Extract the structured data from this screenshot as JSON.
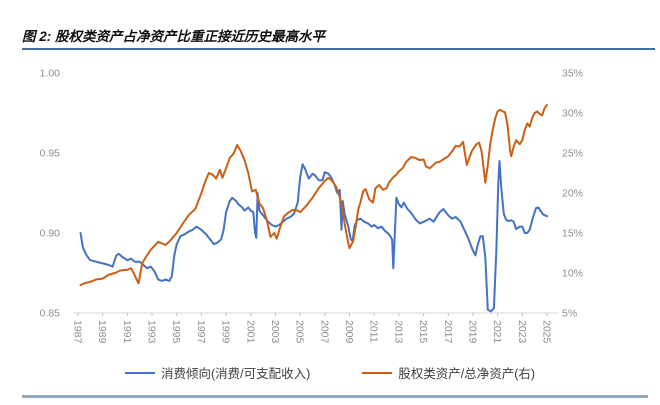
{
  "figure": {
    "title": "图 2: 股权类资产占净资产比重正接近历史最高水平"
  },
  "legend": {
    "series1": "消费倾向(消费/可支配收入)",
    "series2": "股权类资产/总净资产(右)"
  },
  "chart_data": {
    "type": "line",
    "title": "图 2: 股权类资产占净资产比重正接近历史最高水平",
    "grid": false,
    "legend_position": "bottom",
    "colors": {
      "series1_blue": "#4472C4",
      "series2_orange": "#CB6015",
      "axis_text": "#8E8E8E",
      "axis_line": "#D9D9D9",
      "tick_mark": "#BFBFBF",
      "title_rule": "#41719C",
      "bottom_rule": "#90A7BD"
    },
    "x_axis": {
      "min": 1987,
      "max": 2025,
      "tick_years": [
        1987,
        1989,
        1991,
        1993,
        1995,
        1997,
        1999,
        2001,
        2003,
        2005,
        2007,
        2009,
        2011,
        2013,
        2015,
        2017,
        2019,
        2021,
        2023,
        2025
      ]
    },
    "left_axis": {
      "min": 0.85,
      "max": 1.0,
      "ticks": [
        1.0,
        0.95,
        0.9,
        0.85
      ],
      "tick_labels": [
        "1.00",
        "0.95",
        "0.90",
        "0.85"
      ]
    },
    "right_axis": {
      "min": 5,
      "max": 35,
      "ticks": [
        35,
        30,
        25,
        20,
        15,
        10,
        5
      ],
      "tick_labels": [
        "35%",
        "30%",
        "25%",
        "20%",
        "15%",
        "10%",
        "5%"
      ]
    },
    "series": [
      {
        "name": "消费倾向(消费/可支配收入)",
        "axis": "left",
        "color": "#4472C4",
        "points": [
          [
            1987.2,
            0.9
          ],
          [
            1987.4,
            0.891
          ],
          [
            1987.7,
            0.886
          ],
          [
            1988.0,
            0.883
          ],
          [
            1988.5,
            0.882
          ],
          [
            1989.0,
            0.881
          ],
          [
            1989.5,
            0.88
          ],
          [
            1989.8,
            0.879
          ],
          [
            1990.1,
            0.886
          ],
          [
            1990.3,
            0.887
          ],
          [
            1990.6,
            0.885
          ],
          [
            1991.0,
            0.883
          ],
          [
            1991.3,
            0.884
          ],
          [
            1991.6,
            0.882
          ],
          [
            1992.0,
            0.882
          ],
          [
            1992.3,
            0.88
          ],
          [
            1992.6,
            0.878
          ],
          [
            1992.9,
            0.879
          ],
          [
            1993.2,
            0.876
          ],
          [
            1993.5,
            0.871
          ],
          [
            1993.8,
            0.87
          ],
          [
            1994.1,
            0.871
          ],
          [
            1994.4,
            0.87
          ],
          [
            1994.6,
            0.873
          ],
          [
            1994.8,
            0.886
          ],
          [
            1995.0,
            0.893
          ],
          [
            1995.3,
            0.898
          ],
          [
            1995.6,
            0.899
          ],
          [
            1996.0,
            0.901
          ],
          [
            1996.3,
            0.902
          ],
          [
            1996.6,
            0.904
          ],
          [
            1997.0,
            0.902
          ],
          [
            1997.4,
            0.899
          ],
          [
            1997.7,
            0.896
          ],
          [
            1998.0,
            0.893
          ],
          [
            1998.3,
            0.894
          ],
          [
            1998.6,
            0.896
          ],
          [
            1998.8,
            0.902
          ],
          [
            1999.0,
            0.913
          ],
          [
            1999.3,
            0.92
          ],
          [
            1999.5,
            0.922
          ],
          [
            1999.8,
            0.92
          ],
          [
            2000.0,
            0.918
          ],
          [
            2000.3,
            0.916
          ],
          [
            2000.5,
            0.914
          ],
          [
            2000.8,
            0.916
          ],
          [
            2001.0,
            0.914
          ],
          [
            2001.2,
            0.913
          ],
          [
            2001.35,
            0.9
          ],
          [
            2001.45,
            0.897
          ],
          [
            2001.55,
            0.925
          ],
          [
            2001.7,
            0.914
          ],
          [
            2001.9,
            0.912
          ],
          [
            2002.1,
            0.91
          ],
          [
            2002.4,
            0.907
          ],
          [
            2002.7,
            0.905
          ],
          [
            2003.0,
            0.904
          ],
          [
            2003.3,
            0.905
          ],
          [
            2003.6,
            0.907
          ],
          [
            2003.9,
            0.909
          ],
          [
            2004.2,
            0.91
          ],
          [
            2004.5,
            0.912
          ],
          [
            2004.8,
            0.919
          ],
          [
            2005.0,
            0.935
          ],
          [
            2005.2,
            0.943
          ],
          [
            2005.4,
            0.94
          ],
          [
            2005.7,
            0.934
          ],
          [
            2006.0,
            0.937
          ],
          [
            2006.2,
            0.936
          ],
          [
            2006.5,
            0.933
          ],
          [
            2006.8,
            0.933
          ],
          [
            2007.0,
            0.938
          ],
          [
            2007.3,
            0.937
          ],
          [
            2007.5,
            0.935
          ],
          [
            2007.8,
            0.93
          ],
          [
            2008.0,
            0.925
          ],
          [
            2008.2,
            0.927
          ],
          [
            2008.35,
            0.902
          ],
          [
            2008.45,
            0.92
          ],
          [
            2008.6,
            0.912
          ],
          [
            2008.9,
            0.904
          ],
          [
            2009.1,
            0.896
          ],
          [
            2009.25,
            0.895
          ],
          [
            2009.4,
            0.904
          ],
          [
            2009.6,
            0.908
          ],
          [
            2009.9,
            0.909
          ],
          [
            2010.2,
            0.907
          ],
          [
            2010.5,
            0.906
          ],
          [
            2010.8,
            0.904
          ],
          [
            2011.0,
            0.905
          ],
          [
            2011.3,
            0.903
          ],
          [
            2011.6,
            0.904
          ],
          [
            2011.9,
            0.901
          ],
          [
            2012.1,
            0.9
          ],
          [
            2012.3,
            0.898
          ],
          [
            2012.45,
            0.896
          ],
          [
            2012.55,
            0.878
          ],
          [
            2012.65,
            0.896
          ],
          [
            2012.8,
            0.922
          ],
          [
            2013.0,
            0.918
          ],
          [
            2013.2,
            0.916
          ],
          [
            2013.4,
            0.919
          ],
          [
            2013.7,
            0.915
          ],
          [
            2014.0,
            0.9125
          ],
          [
            2014.4,
            0.908
          ],
          [
            2014.7,
            0.906
          ],
          [
            2015.0,
            0.907
          ],
          [
            2015.5,
            0.909
          ],
          [
            2015.8,
            0.907
          ],
          [
            2016.3,
            0.913
          ],
          [
            2016.6,
            0.915
          ],
          [
            2017.0,
            0.911
          ],
          [
            2017.3,
            0.909
          ],
          [
            2017.6,
            0.91
          ],
          [
            2018.0,
            0.907
          ],
          [
            2018.3,
            0.902
          ],
          [
            2018.6,
            0.897
          ],
          [
            2019.0,
            0.889
          ],
          [
            2019.2,
            0.886
          ],
          [
            2019.4,
            0.893
          ],
          [
            2019.6,
            0.898
          ],
          [
            2019.8,
            0.898
          ],
          [
            2020.0,
            0.885
          ],
          [
            2020.2,
            0.852
          ],
          [
            2020.45,
            0.851
          ],
          [
            2020.7,
            0.853
          ],
          [
            2020.9,
            0.89
          ],
          [
            2021.05,
            0.93
          ],
          [
            2021.15,
            0.945
          ],
          [
            2021.3,
            0.928
          ],
          [
            2021.5,
            0.912
          ],
          [
            2021.7,
            0.908
          ],
          [
            2021.9,
            0.9075
          ],
          [
            2022.1,
            0.908
          ],
          [
            2022.3,
            0.907
          ],
          [
            2022.5,
            0.9025
          ],
          [
            2022.8,
            0.904
          ],
          [
            2023.0,
            0.904
          ],
          [
            2023.2,
            0.9
          ],
          [
            2023.4,
            0.9
          ],
          [
            2023.6,
            0.902
          ],
          [
            2023.8,
            0.908
          ],
          [
            2024.1,
            0.9155
          ],
          [
            2024.3,
            0.916
          ],
          [
            2024.5,
            0.9135
          ],
          [
            2024.7,
            0.9115
          ],
          [
            2025.0,
            0.9105
          ]
        ]
      },
      {
        "name": "股权类资产/总净资产(右)",
        "axis": "right",
        "color": "#CB6015",
        "points": [
          [
            1987.2,
            8.5
          ],
          [
            1987.5,
            8.7
          ],
          [
            1988.0,
            8.9
          ],
          [
            1988.5,
            9.2
          ],
          [
            1989.0,
            9.3
          ],
          [
            1989.5,
            9.8
          ],
          [
            1990.0,
            10.0
          ],
          [
            1990.4,
            10.3
          ],
          [
            1991.0,
            10.4
          ],
          [
            1991.3,
            10.6
          ],
          [
            1991.6,
            9.7
          ],
          [
            1991.9,
            8.7
          ],
          [
            1992.2,
            11.2
          ],
          [
            1992.5,
            12.0
          ],
          [
            1992.9,
            12.9
          ],
          [
            1993.5,
            13.9
          ],
          [
            1994.1,
            13.5
          ],
          [
            1994.5,
            14.1
          ],
          [
            1995.0,
            15.0
          ],
          [
            1995.5,
            16.2
          ],
          [
            1996.0,
            17.3
          ],
          [
            1996.5,
            18.0
          ],
          [
            1997.0,
            20.0
          ],
          [
            1997.3,
            21.4
          ],
          [
            1997.6,
            22.5
          ],
          [
            1997.9,
            22.3
          ],
          [
            1998.2,
            21.8
          ],
          [
            1998.5,
            22.9
          ],
          [
            1998.7,
            21.9
          ],
          [
            1999.0,
            23.1
          ],
          [
            1999.3,
            24.4
          ],
          [
            1999.6,
            24.9
          ],
          [
            1999.9,
            26.0
          ],
          [
            2000.2,
            25.2
          ],
          [
            2000.5,
            24.1
          ],
          [
            2000.8,
            22.5
          ],
          [
            2001.1,
            20.2
          ],
          [
            2001.4,
            20.4
          ],
          [
            2001.7,
            18.7
          ],
          [
            2002.0,
            18.1
          ],
          [
            2002.3,
            16.6
          ],
          [
            2002.6,
            14.5
          ],
          [
            2002.9,
            15.0
          ],
          [
            2003.1,
            14.3
          ],
          [
            2003.4,
            15.8
          ],
          [
            2003.7,
            17.1
          ],
          [
            2004.0,
            17.5
          ],
          [
            2004.4,
            17.9
          ],
          [
            2004.8,
            17.8
          ],
          [
            2005.0,
            17.6
          ],
          [
            2005.5,
            18.4
          ],
          [
            2006.0,
            19.4
          ],
          [
            2006.5,
            20.6
          ],
          [
            2007.0,
            21.5
          ],
          [
            2007.3,
            21.9
          ],
          [
            2007.6,
            21.5
          ],
          [
            2007.9,
            20.8
          ],
          [
            2008.2,
            19.5
          ],
          [
            2008.4,
            18.3
          ],
          [
            2008.6,
            16.2
          ],
          [
            2008.9,
            13.7
          ],
          [
            2009.0,
            13.1
          ],
          [
            2009.3,
            14.0
          ],
          [
            2009.5,
            15.8
          ],
          [
            2009.7,
            17.9
          ],
          [
            2009.9,
            18.9
          ],
          [
            2010.1,
            20.2
          ],
          [
            2010.3,
            20.5
          ],
          [
            2010.6,
            19.2
          ],
          [
            2010.9,
            18.8
          ],
          [
            2011.1,
            20.6
          ],
          [
            2011.4,
            21.0
          ],
          [
            2011.7,
            20.4
          ],
          [
            2012.0,
            20.6
          ],
          [
            2012.2,
            21.3
          ],
          [
            2012.5,
            21.9
          ],
          [
            2012.8,
            22.3
          ],
          [
            2013.0,
            22.7
          ],
          [
            2013.3,
            23.1
          ],
          [
            2013.6,
            23.9
          ],
          [
            2014.0,
            24.5
          ],
          [
            2014.3,
            24.4
          ],
          [
            2014.7,
            24.1
          ],
          [
            2015.0,
            24.2
          ],
          [
            2015.2,
            23.3
          ],
          [
            2015.5,
            23.1
          ],
          [
            2015.8,
            23.5
          ],
          [
            2016.0,
            23.8
          ],
          [
            2016.3,
            23.9
          ],
          [
            2016.6,
            24.2
          ],
          [
            2017.0,
            24.6
          ],
          [
            2017.3,
            25.2
          ],
          [
            2017.6,
            25.9
          ],
          [
            2017.9,
            25.8
          ],
          [
            2018.2,
            26.4
          ],
          [
            2018.5,
            23.5
          ],
          [
            2018.9,
            25.2
          ],
          [
            2019.1,
            25.7
          ],
          [
            2019.3,
            26.1
          ],
          [
            2019.5,
            26.3
          ],
          [
            2019.7,
            25.2
          ],
          [
            2020.0,
            21.3
          ],
          [
            2020.2,
            23.5
          ],
          [
            2020.4,
            26.1
          ],
          [
            2020.6,
            27.9
          ],
          [
            2020.8,
            29.3
          ],
          [
            2021.0,
            30.2
          ],
          [
            2021.2,
            30.4
          ],
          [
            2021.4,
            30.2
          ],
          [
            2021.6,
            30.1
          ],
          [
            2021.8,
            28.5
          ],
          [
            2022.0,
            25.4
          ],
          [
            2022.1,
            24.6
          ],
          [
            2022.3,
            25.8
          ],
          [
            2022.5,
            26.6
          ],
          [
            2022.8,
            26.1
          ],
          [
            2023.0,
            26.6
          ],
          [
            2023.2,
            27.9
          ],
          [
            2023.4,
            28.7
          ],
          [
            2023.6,
            28.3
          ],
          [
            2023.8,
            29.4
          ],
          [
            2024.0,
            30.0
          ],
          [
            2024.2,
            30.2
          ],
          [
            2024.4,
            29.9
          ],
          [
            2024.6,
            29.7
          ],
          [
            2024.8,
            30.6
          ],
          [
            2025.0,
            31.0
          ]
        ]
      }
    ]
  }
}
